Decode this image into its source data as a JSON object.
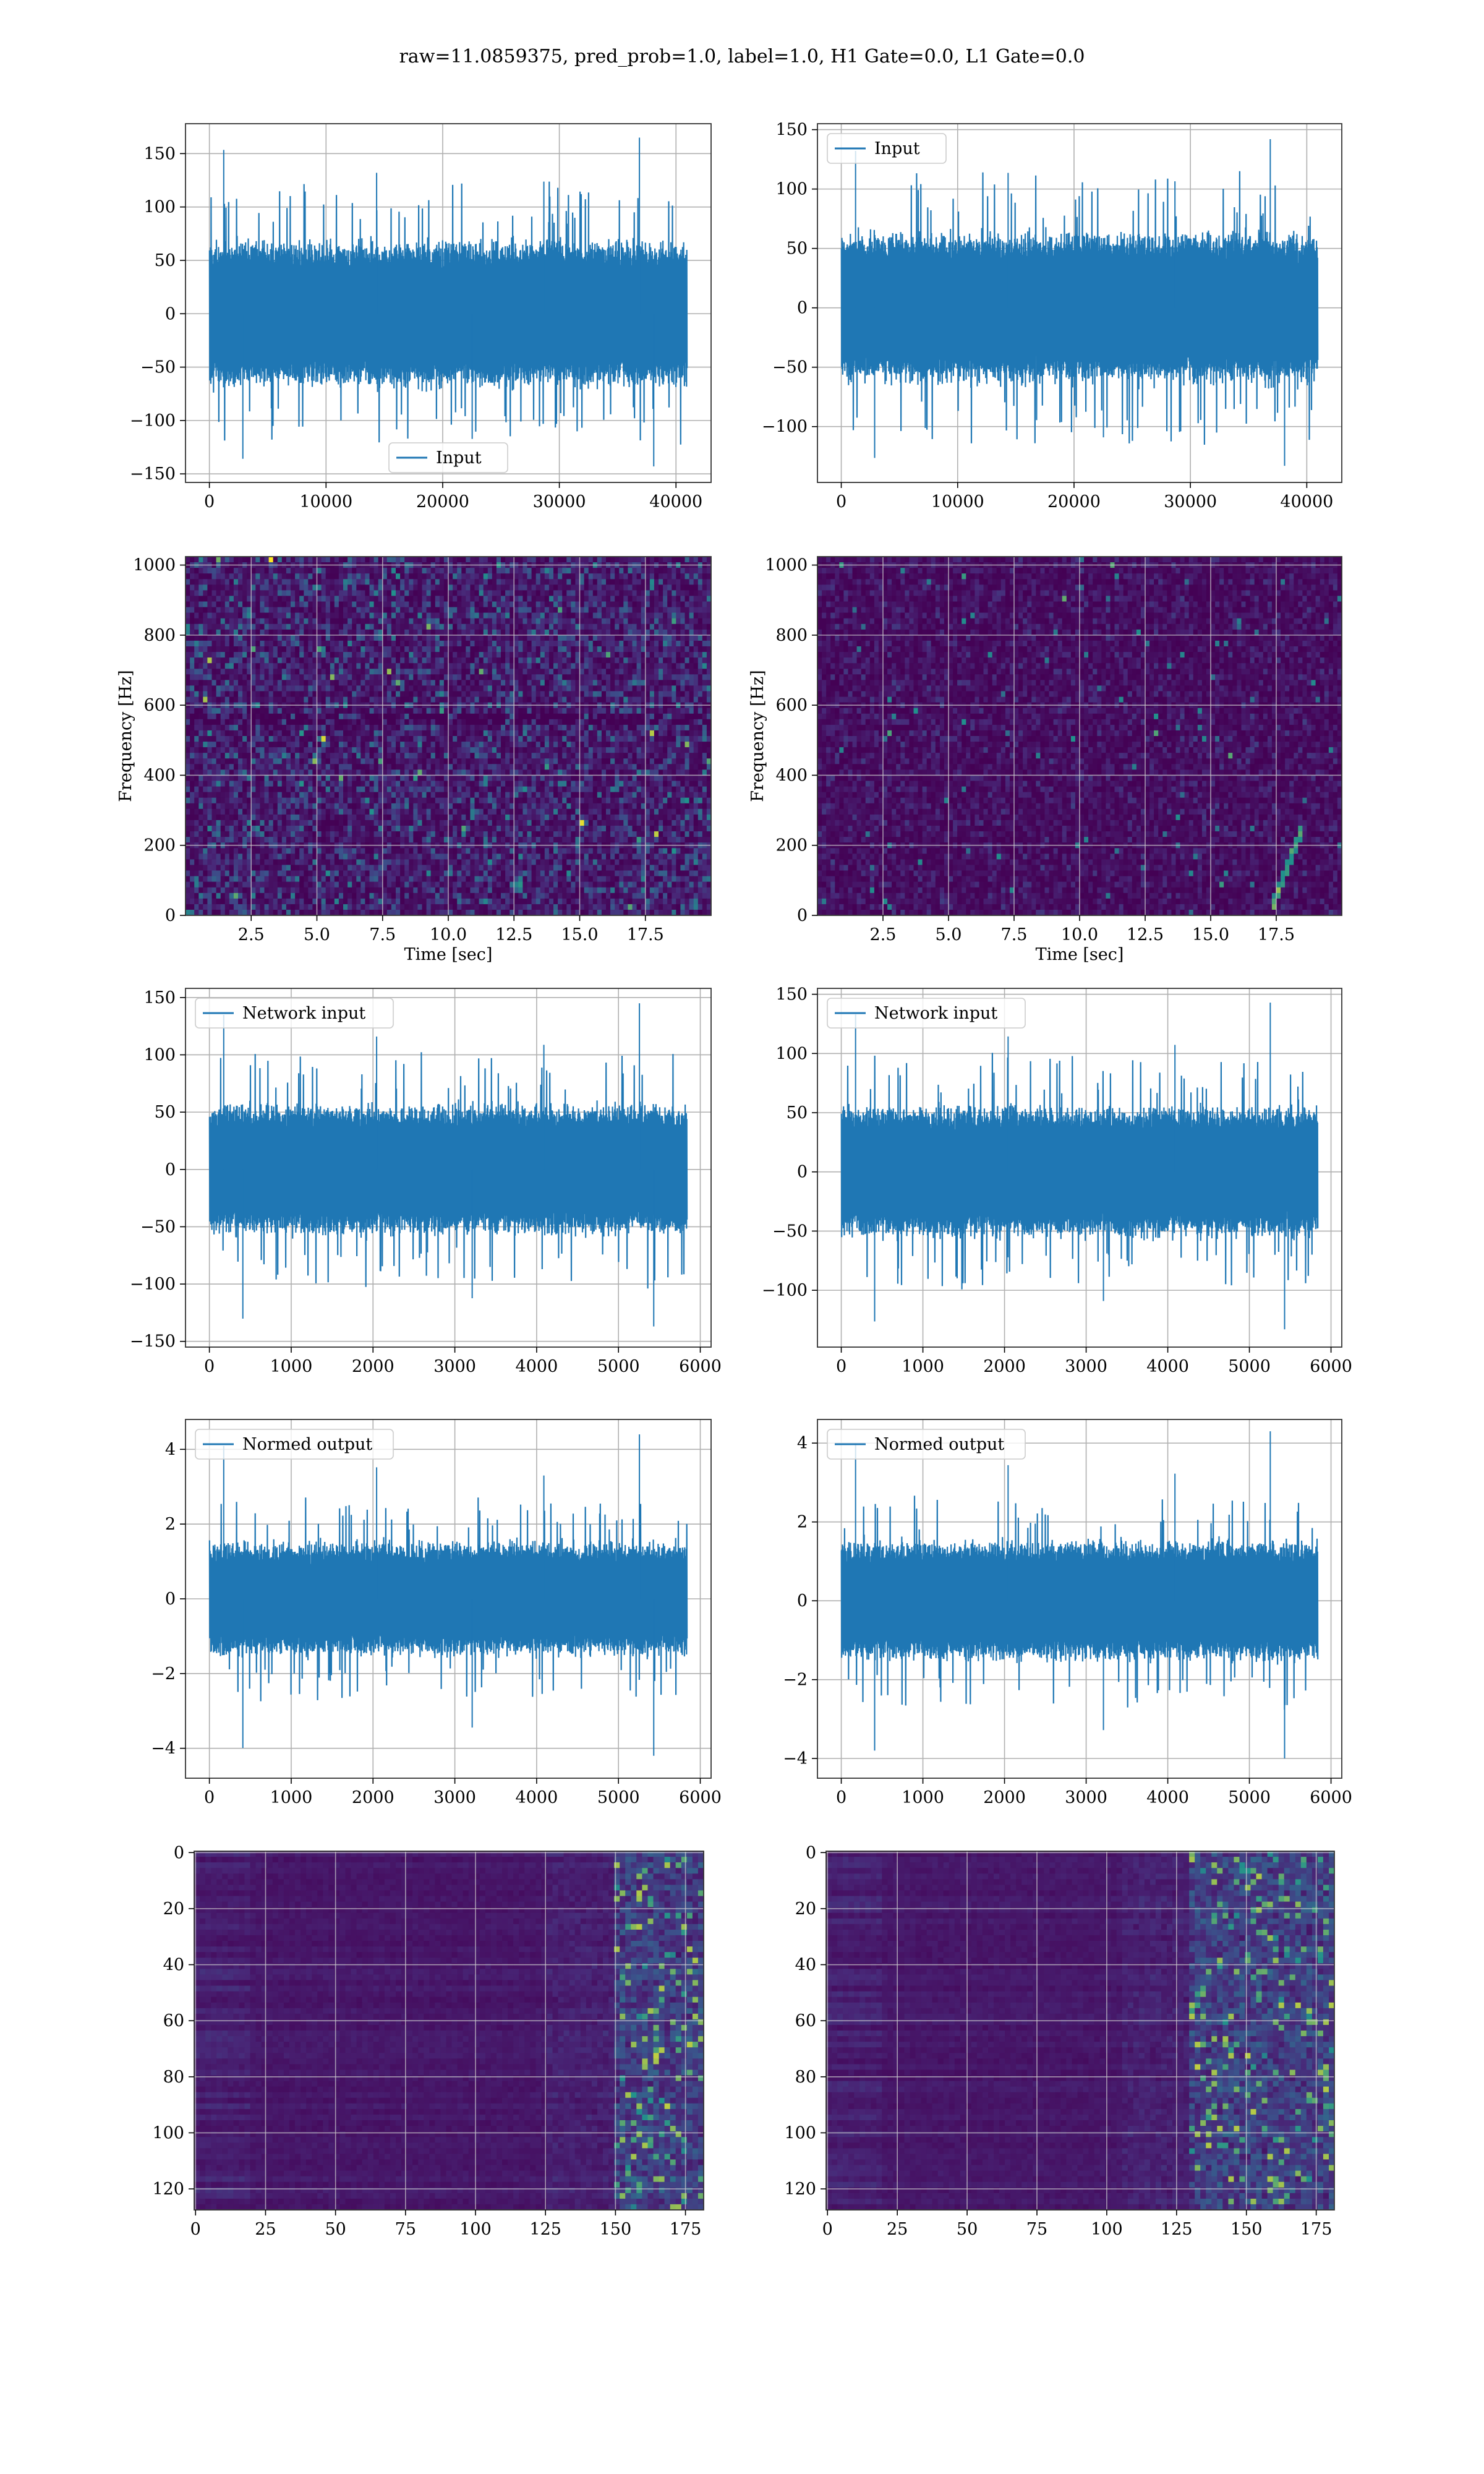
{
  "figure": {
    "title": "raw=11.0859375, pred_prob=1.0, label=1.0, H1 Gate=0.0, L1 Gate=0.0",
    "background": "#ffffff"
  },
  "colors": {
    "line": "#1f77b4",
    "grid": "#b0b0b0",
    "spectrogram_low": "#440154",
    "spectrogram_mid": "#21918c",
    "spectrogram_high": "#fde725"
  },
  "chart_data": [
    {
      "id": "h1-input",
      "type": "line",
      "col": 0,
      "row": 0,
      "title": "",
      "xlabel": "",
      "ylabel": "",
      "xlim": [
        -2048,
        43008
      ],
      "ylim": [
        -158,
        178
      ],
      "xticks": [
        0,
        10000,
        20000,
        30000,
        40000
      ],
      "yticks": [
        -150,
        -100,
        -50,
        0,
        50,
        100,
        150
      ],
      "grid": true,
      "legend": "lower-center",
      "series": [
        {
          "name": "Input",
          "n_samples": 40960,
          "band": 72,
          "peak_max": 165,
          "peak_min": -143
        }
      ]
    },
    {
      "id": "l1-input",
      "type": "line",
      "col": 1,
      "row": 0,
      "title": "",
      "xlabel": "",
      "ylabel": "",
      "xlim": [
        -2048,
        43008
      ],
      "ylim": [
        -147,
        155
      ],
      "xticks": [
        0,
        10000,
        20000,
        30000,
        40000
      ],
      "yticks": [
        -100,
        -50,
        0,
        50,
        100,
        150
      ],
      "grid": true,
      "legend": "upper-left",
      "series": [
        {
          "name": "Input",
          "n_samples": 40960,
          "band": 67,
          "peak_max": 142,
          "peak_min": -133
        }
      ]
    },
    {
      "id": "h1-spectrogram",
      "type": "heatmap",
      "col": 0,
      "row": 1,
      "title": "",
      "xlabel": "Time [sec]",
      "ylabel": "Frequency [Hz]",
      "xlim": [
        0,
        20
      ],
      "ylim": [
        0,
        1024
      ],
      "xticks": [
        2.5,
        5.0,
        7.5,
        10.0,
        12.5,
        15.0,
        17.5
      ],
      "yticks": [
        0,
        200,
        400,
        600,
        800,
        1000
      ],
      "grid": true,
      "intensity": "medium-speckled"
    },
    {
      "id": "l1-spectrogram",
      "type": "heatmap",
      "col": 1,
      "row": 1,
      "title": "",
      "xlabel": "Time [sec]",
      "ylabel": "Frequency [Hz]",
      "xlim": [
        0,
        20
      ],
      "ylim": [
        0,
        1024
      ],
      "xticks": [
        2.5,
        5.0,
        7.5,
        10.0,
        12.5,
        15.0,
        17.5
      ],
      "yticks": [
        0,
        200,
        400,
        600,
        800,
        1000
      ],
      "grid": true,
      "intensity": "low-with-chirp-near-18s"
    },
    {
      "id": "h1-network-input",
      "type": "line",
      "col": 0,
      "row": 2,
      "title": "",
      "xlabel": "",
      "ylabel": "",
      "xlim": [
        -292,
        6132
      ],
      "ylim": [
        -155,
        158
      ],
      "xticks": [
        0,
        1000,
        2000,
        3000,
        4000,
        5000,
        6000
      ],
      "yticks": [
        -150,
        -100,
        -50,
        0,
        50,
        100,
        150
      ],
      "grid": true,
      "legend": "upper-left",
      "series": [
        {
          "name": "Network input",
          "n_samples": 5840,
          "band": 60,
          "peak_max": 145,
          "peak_min": -137
        }
      ]
    },
    {
      "id": "l1-network-input",
      "type": "line",
      "col": 1,
      "row": 2,
      "title": "",
      "xlabel": "",
      "ylabel": "",
      "xlim": [
        -292,
        6132
      ],
      "ylim": [
        -148,
        155
      ],
      "xticks": [
        0,
        1000,
        2000,
        3000,
        4000,
        5000,
        6000
      ],
      "yticks": [
        -100,
        -50,
        0,
        50,
        100,
        150
      ],
      "grid": true,
      "legend": "upper-left",
      "series": [
        {
          "name": "Network input",
          "n_samples": 5840,
          "band": 58,
          "peak_max": 143,
          "peak_min": -133
        }
      ]
    },
    {
      "id": "h1-normed-output",
      "type": "line",
      "col": 0,
      "row": 3,
      "title": "",
      "xlabel": "",
      "ylabel": "",
      "xlim": [
        -292,
        6132
      ],
      "ylim": [
        -4.8,
        4.8
      ],
      "xticks": [
        0,
        1000,
        2000,
        3000,
        4000,
        5000,
        6000
      ],
      "yticks": [
        -4,
        -2,
        0,
        2,
        4
      ],
      "grid": true,
      "legend": "upper-left",
      "series": [
        {
          "name": "Normed output",
          "n_samples": 5840,
          "band": 1.6,
          "peak_max": 4.4,
          "peak_min": -4.2
        }
      ]
    },
    {
      "id": "l1-normed-output",
      "type": "line",
      "col": 1,
      "row": 3,
      "title": "",
      "xlabel": "",
      "ylabel": "",
      "xlim": [
        -292,
        6132
      ],
      "ylim": [
        -4.5,
        4.6
      ],
      "xticks": [
        0,
        1000,
        2000,
        3000,
        4000,
        5000,
        6000
      ],
      "yticks": [
        -4,
        -2,
        0,
        2,
        4
      ],
      "grid": true,
      "legend": "upper-left",
      "series": [
        {
          "name": "Normed output",
          "n_samples": 5840,
          "band": 1.6,
          "peak_max": 4.3,
          "peak_min": -4.0
        }
      ]
    },
    {
      "id": "h1-feature-map",
      "type": "heatmap",
      "col": 0,
      "row": 4,
      "title": "",
      "xlabel": "",
      "ylabel": "",
      "xlim": [
        -0.5,
        181.5
      ],
      "ylim": [
        127.5,
        -0.5
      ],
      "xticks": [
        0,
        25,
        50,
        75,
        100,
        125,
        150,
        175
      ],
      "yticks": [
        0,
        20,
        40,
        60,
        80,
        100,
        120
      ],
      "grid": true,
      "hot_columns": [
        150,
        181
      ]
    },
    {
      "id": "l1-feature-map",
      "type": "heatmap",
      "col": 1,
      "row": 4,
      "title": "",
      "xlabel": "",
      "ylabel": "",
      "xlim": [
        -0.5,
        181.5
      ],
      "ylim": [
        127.5,
        -0.5
      ],
      "xticks": [
        0,
        25,
        50,
        75,
        100,
        125,
        150,
        175
      ],
      "yticks": [
        0,
        20,
        40,
        60,
        80,
        100,
        120
      ],
      "grid": true,
      "hot_columns": [
        130,
        181
      ]
    }
  ]
}
